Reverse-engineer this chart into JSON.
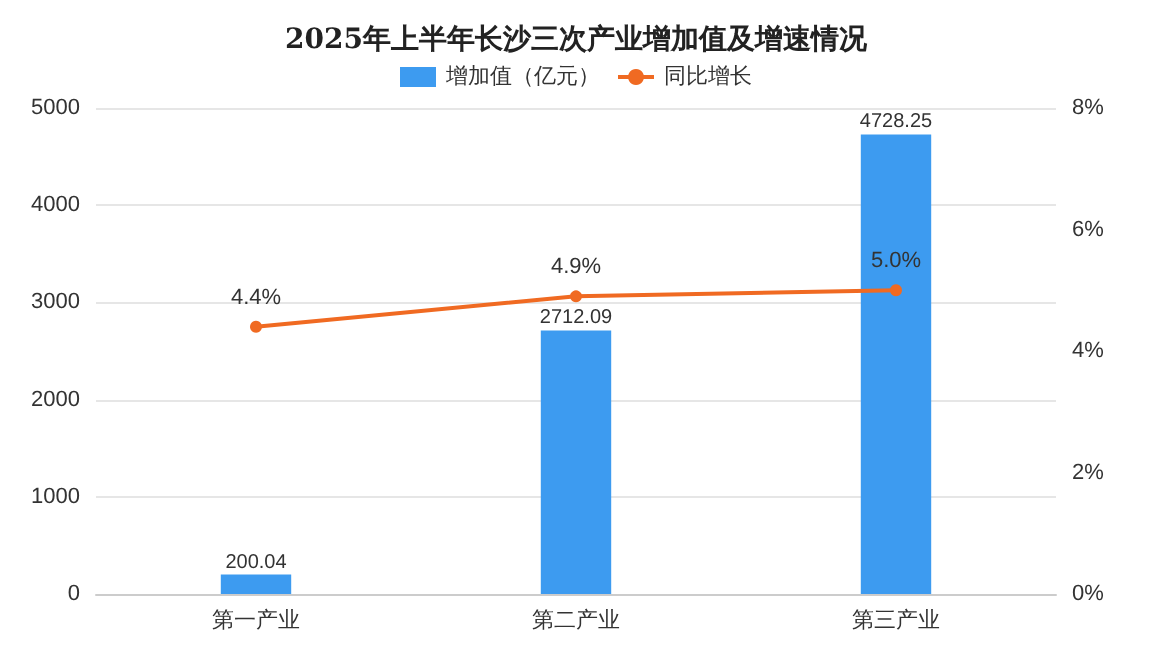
{
  "chart_data": {
    "type": "bar",
    "title": "2025年上半年长沙三次产业增加值及增速情况",
    "categories": [
      "第一产业",
      "第二产业",
      "第三产业"
    ],
    "series": [
      {
        "name": "增加值（亿元）",
        "type": "bar",
        "color": "#3d9bf0",
        "values": [
          200.04,
          2712.09,
          4728.25
        ],
        "value_labels": [
          "200.04",
          "2712.09",
          "4728.25"
        ]
      },
      {
        "name": "同比增长",
        "type": "line",
        "axis": "y2",
        "color": "#f06a22",
        "values": [
          4.4,
          4.9,
          5.0
        ],
        "value_labels": [
          "4.4%",
          "4.9%",
          "5.0%"
        ]
      }
    ],
    "ylim": [
      0,
      5000
    ],
    "yticks": [
      0,
      1000,
      2000,
      3000,
      4000,
      5000
    ],
    "y2lim": [
      0,
      8
    ],
    "y2ticks": [
      {
        "value": 0,
        "label": "0%"
      },
      {
        "value": 2,
        "label": "2%"
      },
      {
        "value": 4,
        "label": "4%"
      },
      {
        "value": 6,
        "label": "6%"
      },
      {
        "value": 8,
        "label": "8%"
      }
    ],
    "grid": "y",
    "marker": "circle",
    "legend": "top"
  }
}
